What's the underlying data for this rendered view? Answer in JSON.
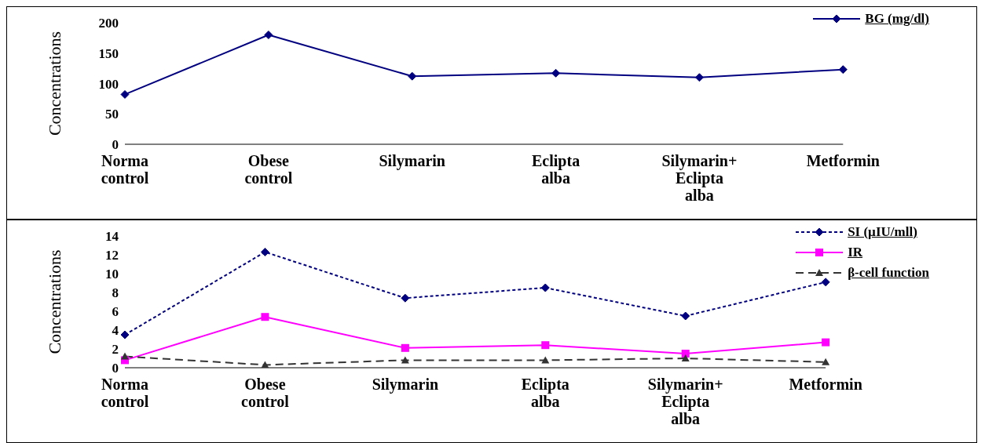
{
  "chart_data": [
    {
      "type": "line",
      "ylabel": "Concentrations",
      "categories": [
        "Norma\ncontrol",
        "Obese\ncontrol",
        "Silymarin",
        "Eclipta\nalba",
        "Silymarin+\nEclipta\nalba",
        "Metformin"
      ],
      "series": [
        {
          "name": "BG (mg/dl)",
          "color": "#000080",
          "values": [
            82,
            180,
            112,
            117,
            110,
            123
          ],
          "marker": "diamond",
          "line_style": "solid"
        }
      ],
      "ylim": [
        0,
        200
      ],
      "yticks": [
        0,
        50,
        100,
        150,
        200
      ],
      "grid": false,
      "legend": "top right"
    },
    {
      "type": "line",
      "ylabel": "Concentrations",
      "categories": [
        "Norma\ncontrol",
        "Obese\ncontrol",
        "Silymarin",
        "Eclipta\nalba",
        "Silymarin+\nEclipta\nalba",
        "Metformin"
      ],
      "series": [
        {
          "name": "SI (µIU/mll)",
          "color": "#000080",
          "values": [
            3.5,
            12.3,
            7.4,
            8.5,
            5.5,
            9.1
          ],
          "marker": "diamond",
          "line_style": "dotted"
        },
        {
          "name": "IR",
          "color": "#ff00ff",
          "values": [
            0.8,
            5.4,
            2.1,
            2.4,
            1.5,
            2.7
          ],
          "marker": "square",
          "line_style": "solid"
        },
        {
          "name": "β-cell function",
          "color": "#333333",
          "values": [
            1.2,
            0.3,
            0.8,
            0.8,
            1.0,
            0.6
          ],
          "marker": "triangle",
          "line_style": "dashed"
        }
      ],
      "ylim": [
        0,
        14
      ],
      "yticks": [
        0,
        2,
        4,
        6,
        8,
        10,
        12,
        14
      ],
      "grid": false,
      "legend": "top right"
    }
  ]
}
